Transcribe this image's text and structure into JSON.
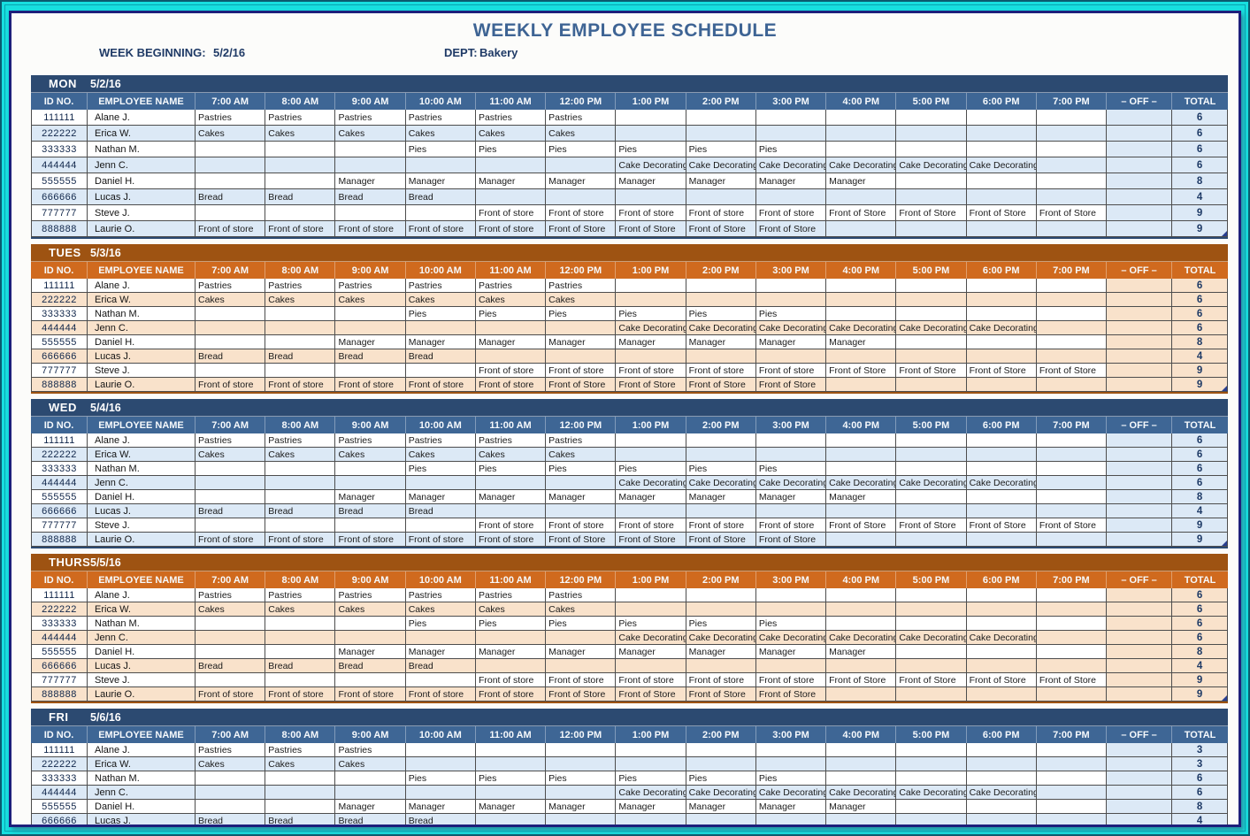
{
  "header": {
    "title": "WEEKLY EMPLOYEE SCHEDULE",
    "week_beginning_label": "WEEK BEGINNING:",
    "week_beginning_value": "5/2/16",
    "dept_label": "DEPT:",
    "dept_value": "Bakery"
  },
  "columns": {
    "id_label": "ID NO.",
    "name_label": "EMPLOYEE NAME",
    "times": [
      "7:00 AM",
      "8:00 AM",
      "9:00 AM",
      "10:00 AM",
      "11:00 AM",
      "12:00 PM",
      "1:00 PM",
      "2:00 PM",
      "3:00 PM",
      "4:00 PM",
      "5:00 PM",
      "6:00 PM",
      "7:00 PM"
    ],
    "off_label": "– OFF –",
    "total_label": "TOTAL"
  },
  "colors": {
    "frame_cyan": "#17dfdf",
    "window_border_navy": "#1e1f7b",
    "blue_bar": "#2c4a71",
    "blue_header": "#3e6695",
    "blue_tint": "#dce9f6",
    "orange_bar": "#9e5312",
    "orange_header": "#d06a1e",
    "orange_tint": "#f9e2cb",
    "title_blue": "#3e6494"
  },
  "days": [
    {
      "name": "MON",
      "date": "5/2/16",
      "theme": "blue",
      "tall": true,
      "fill_handle": true,
      "partial_next_row": false,
      "rows": [
        {
          "id": "111111",
          "name": "Alane J.",
          "shifts": [
            "Pastries",
            "Pastries",
            "Pastries",
            "Pastries",
            "Pastries",
            "Pastries",
            "",
            "",
            "",
            "",
            "",
            "",
            ""
          ],
          "off": "",
          "total": "6"
        },
        {
          "id": "222222",
          "name": "Erica W.",
          "shifts": [
            "Cakes",
            "Cakes",
            "Cakes",
            "Cakes",
            "Cakes",
            "Cakes",
            "",
            "",
            "",
            "",
            "",
            "",
            ""
          ],
          "off": "",
          "total": "6"
        },
        {
          "id": "333333",
          "name": "Nathan M.",
          "shifts": [
            "",
            "",
            "",
            "Pies",
            "Pies",
            "Pies",
            "Pies",
            "Pies",
            "Pies",
            "",
            "",
            "",
            ""
          ],
          "off": "",
          "total": "6"
        },
        {
          "id": "444444",
          "name": "Jenn C.",
          "shifts": [
            "",
            "",
            "",
            "",
            "",
            "",
            "Cake Decorating",
            "Cake Decorating",
            "Cake Decorating",
            "Cake Decorating",
            "Cake Decorating",
            "Cake Decorating",
            ""
          ],
          "off": "",
          "total": "6"
        },
        {
          "id": "555555",
          "name": "Daniel H.",
          "shifts": [
            "",
            "",
            "Manager",
            "Manager",
            "Manager",
            "Manager",
            "Manager",
            "Manager",
            "Manager",
            "Manager",
            "",
            "",
            ""
          ],
          "off": "",
          "total": "8"
        },
        {
          "id": "666666",
          "name": "Lucas J.",
          "shifts": [
            "Bread",
            "Bread",
            "Bread",
            "Bread",
            "",
            "",
            "",
            "",
            "",
            "",
            "",
            "",
            ""
          ],
          "off": "",
          "total": "4"
        },
        {
          "id": "777777",
          "name": "Steve J.",
          "shifts": [
            "",
            "",
            "",
            "",
            "Front of store",
            "Front of store",
            "Front of store",
            "Front of store",
            "Front of store",
            "Front of Store",
            "Front of Store",
            "Front of Store",
            "Front of Store"
          ],
          "off": "",
          "total": "9"
        },
        {
          "id": "888888",
          "name": "Laurie O.",
          "shifts": [
            "Front of store",
            "Front of store",
            "Front of store",
            "Front of store",
            "Front of store",
            "Front of Store",
            "Front of Store",
            "Front of Store",
            "Front of Store",
            "",
            "",
            "",
            ""
          ],
          "off": "",
          "total": "9"
        }
      ]
    },
    {
      "name": "TUES",
      "date": "5/3/16",
      "theme": "orange",
      "tall": false,
      "fill_handle": true,
      "partial_next_row": false,
      "rows": [
        {
          "id": "111111",
          "name": "Alane J.",
          "shifts": [
            "Pastries",
            "Pastries",
            "Pastries",
            "Pastries",
            "Pastries",
            "Pastries",
            "",
            "",
            "",
            "",
            "",
            "",
            ""
          ],
          "off": "",
          "total": "6"
        },
        {
          "id": "222222",
          "name": "Erica W.",
          "shifts": [
            "Cakes",
            "Cakes",
            "Cakes",
            "Cakes",
            "Cakes",
            "Cakes",
            "",
            "",
            "",
            "",
            "",
            "",
            ""
          ],
          "off": "",
          "total": "6"
        },
        {
          "id": "333333",
          "name": "Nathan M.",
          "shifts": [
            "",
            "",
            "",
            "Pies",
            "Pies",
            "Pies",
            "Pies",
            "Pies",
            "Pies",
            "",
            "",
            "",
            ""
          ],
          "off": "",
          "total": "6"
        },
        {
          "id": "444444",
          "name": "Jenn C.",
          "shifts": [
            "",
            "",
            "",
            "",
            "",
            "",
            "Cake Decorating",
            "Cake Decorating",
            "Cake Decorating",
            "Cake Decorating",
            "Cake Decorating",
            "Cake Decorating",
            ""
          ],
          "off": "",
          "total": "6"
        },
        {
          "id": "555555",
          "name": "Daniel H.",
          "shifts": [
            "",
            "",
            "Manager",
            "Manager",
            "Manager",
            "Manager",
            "Manager",
            "Manager",
            "Manager",
            "Manager",
            "",
            "",
            ""
          ],
          "off": "",
          "total": "8"
        },
        {
          "id": "666666",
          "name": "Lucas J.",
          "shifts": [
            "Bread",
            "Bread",
            "Bread",
            "Bread",
            "",
            "",
            "",
            "",
            "",
            "",
            "",
            "",
            ""
          ],
          "off": "",
          "total": "4"
        },
        {
          "id": "777777",
          "name": "Steve J.",
          "shifts": [
            "",
            "",
            "",
            "",
            "Front of store",
            "Front of store",
            "Front of store",
            "Front of store",
            "Front of store",
            "Front of Store",
            "Front of Store",
            "Front of Store",
            "Front of Store"
          ],
          "off": "",
          "total": "9"
        },
        {
          "id": "888888",
          "name": "Laurie O.",
          "shifts": [
            "Front of store",
            "Front of store",
            "Front of store",
            "Front of store",
            "Front of store",
            "Front of Store",
            "Front of Store",
            "Front of Store",
            "Front of Store",
            "",
            "",
            "",
            ""
          ],
          "off": "",
          "total": "9"
        }
      ]
    },
    {
      "name": "WED",
      "date": "5/4/16",
      "theme": "blue",
      "tall": false,
      "fill_handle": true,
      "partial_next_row": false,
      "rows": [
        {
          "id": "111111",
          "name": "Alane J.",
          "shifts": [
            "Pastries",
            "Pastries",
            "Pastries",
            "Pastries",
            "Pastries",
            "Pastries",
            "",
            "",
            "",
            "",
            "",
            "",
            ""
          ],
          "off": "",
          "total": "6"
        },
        {
          "id": "222222",
          "name": "Erica W.",
          "shifts": [
            "Cakes",
            "Cakes",
            "Cakes",
            "Cakes",
            "Cakes",
            "Cakes",
            "",
            "",
            "",
            "",
            "",
            "",
            ""
          ],
          "off": "",
          "total": "6"
        },
        {
          "id": "333333",
          "name": "Nathan M.",
          "shifts": [
            "",
            "",
            "",
            "Pies",
            "Pies",
            "Pies",
            "Pies",
            "Pies",
            "Pies",
            "",
            "",
            "",
            ""
          ],
          "off": "",
          "total": "6"
        },
        {
          "id": "444444",
          "name": "Jenn C.",
          "shifts": [
            "",
            "",
            "",
            "",
            "",
            "",
            "Cake Decorating",
            "Cake Decorating",
            "Cake Decorating",
            "Cake Decorating",
            "Cake Decorating",
            "Cake Decorating",
            ""
          ],
          "off": "",
          "total": "6"
        },
        {
          "id": "555555",
          "name": "Daniel H.",
          "shifts": [
            "",
            "",
            "Manager",
            "Manager",
            "Manager",
            "Manager",
            "Manager",
            "Manager",
            "Manager",
            "Manager",
            "",
            "",
            ""
          ],
          "off": "",
          "total": "8"
        },
        {
          "id": "666666",
          "name": "Lucas J.",
          "shifts": [
            "Bread",
            "Bread",
            "Bread",
            "Bread",
            "",
            "",
            "",
            "",
            "",
            "",
            "",
            "",
            ""
          ],
          "off": "",
          "total": "4"
        },
        {
          "id": "777777",
          "name": "Steve J.",
          "shifts": [
            "",
            "",
            "",
            "",
            "Front of store",
            "Front of store",
            "Front of store",
            "Front of store",
            "Front of store",
            "Front of Store",
            "Front of Store",
            "Front of Store",
            "Front of Store"
          ],
          "off": "",
          "total": "9"
        },
        {
          "id": "888888",
          "name": "Laurie O.",
          "shifts": [
            "Front of store",
            "Front of store",
            "Front of store",
            "Front of store",
            "Front of store",
            "Front of Store",
            "Front of Store",
            "Front of Store",
            "Front of Store",
            "",
            "",
            "",
            ""
          ],
          "off": "",
          "total": "9"
        }
      ]
    },
    {
      "name": "THURS",
      "date": "5/5/16",
      "theme": "orange",
      "tall": false,
      "fill_handle": true,
      "partial_next_row": false,
      "rows": [
        {
          "id": "111111",
          "name": "Alane J.",
          "shifts": [
            "Pastries",
            "Pastries",
            "Pastries",
            "Pastries",
            "Pastries",
            "Pastries",
            "",
            "",
            "",
            "",
            "",
            "",
            ""
          ],
          "off": "",
          "total": "6"
        },
        {
          "id": "222222",
          "name": "Erica W.",
          "shifts": [
            "Cakes",
            "Cakes",
            "Cakes",
            "Cakes",
            "Cakes",
            "Cakes",
            "",
            "",
            "",
            "",
            "",
            "",
            ""
          ],
          "off": "",
          "total": "6"
        },
        {
          "id": "333333",
          "name": "Nathan M.",
          "shifts": [
            "",
            "",
            "",
            "Pies",
            "Pies",
            "Pies",
            "Pies",
            "Pies",
            "Pies",
            "",
            "",
            "",
            ""
          ],
          "off": "",
          "total": "6"
        },
        {
          "id": "444444",
          "name": "Jenn C.",
          "shifts": [
            "",
            "",
            "",
            "",
            "",
            "",
            "Cake Decorating",
            "Cake Decorating",
            "Cake Decorating",
            "Cake Decorating",
            "Cake Decorating",
            "Cake Decorating",
            ""
          ],
          "off": "",
          "total": "6"
        },
        {
          "id": "555555",
          "name": "Daniel H.",
          "shifts": [
            "",
            "",
            "Manager",
            "Manager",
            "Manager",
            "Manager",
            "Manager",
            "Manager",
            "Manager",
            "Manager",
            "",
            "",
            ""
          ],
          "off": "",
          "total": "8"
        },
        {
          "id": "666666",
          "name": "Lucas J.",
          "shifts": [
            "Bread",
            "Bread",
            "Bread",
            "Bread",
            "",
            "",
            "",
            "",
            "",
            "",
            "",
            "",
            ""
          ],
          "off": "",
          "total": "4"
        },
        {
          "id": "777777",
          "name": "Steve J.",
          "shifts": [
            "",
            "",
            "",
            "",
            "Front of store",
            "Front of store",
            "Front of store",
            "Front of store",
            "Front of store",
            "Front of Store",
            "Front of Store",
            "Front of Store",
            "Front of Store"
          ],
          "off": "",
          "total": "9"
        },
        {
          "id": "888888",
          "name": "Laurie O.",
          "shifts": [
            "Front of store",
            "Front of store",
            "Front of store",
            "Front of store",
            "Front of store",
            "Front of Store",
            "Front of Store",
            "Front of Store",
            "Front of Store",
            "",
            "",
            "",
            ""
          ],
          "off": "",
          "total": "9"
        }
      ]
    },
    {
      "name": "FRI",
      "date": "5/6/16",
      "theme": "blue",
      "tall": false,
      "fill_handle": false,
      "partial_next_row": true,
      "rows": [
        {
          "id": "111111",
          "name": "Alane J.",
          "shifts": [
            "Pastries",
            "Pastries",
            "Pastries",
            "",
            "",
            "",
            "",
            "",
            "",
            "",
            "",
            "",
            ""
          ],
          "off": "",
          "total": "3"
        },
        {
          "id": "222222",
          "name": "Erica W.",
          "shifts": [
            "Cakes",
            "Cakes",
            "Cakes",
            "",
            "",
            "",
            "",
            "",
            "",
            "",
            "",
            "",
            ""
          ],
          "off": "",
          "total": "3"
        },
        {
          "id": "333333",
          "name": "Nathan M.",
          "shifts": [
            "",
            "",
            "",
            "Pies",
            "Pies",
            "Pies",
            "Pies",
            "Pies",
            "Pies",
            "",
            "",
            "",
            ""
          ],
          "off": "",
          "total": "6"
        },
        {
          "id": "444444",
          "name": "Jenn C.",
          "shifts": [
            "",
            "",
            "",
            "",
            "",
            "",
            "Cake Decorating",
            "Cake Decorating",
            "Cake Decorating",
            "Cake Decorating",
            "Cake Decorating",
            "Cake Decorating",
            ""
          ],
          "off": "",
          "total": "6"
        },
        {
          "id": "555555",
          "name": "Daniel H.",
          "shifts": [
            "",
            "",
            "Manager",
            "Manager",
            "Manager",
            "Manager",
            "Manager",
            "Manager",
            "Manager",
            "Manager",
            "",
            "",
            ""
          ],
          "off": "",
          "total": "8"
        },
        {
          "id": "666666",
          "name": "Lucas J.",
          "shifts": [
            "Bread",
            "Bread",
            "Bread",
            "Bread",
            "",
            "",
            "",
            "",
            "",
            "",
            "",
            "",
            ""
          ],
          "off": "",
          "total": "4"
        }
      ]
    }
  ]
}
